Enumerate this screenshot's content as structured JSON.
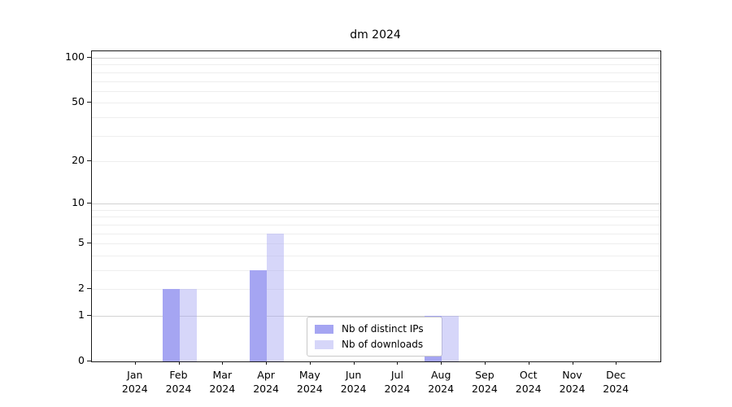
{
  "chart_data": {
    "type": "bar",
    "title": "dm 2024",
    "categories": [
      {
        "month": "Jan",
        "year": "2024"
      },
      {
        "month": "Feb",
        "year": "2024"
      },
      {
        "month": "Mar",
        "year": "2024"
      },
      {
        "month": "Apr",
        "year": "2024"
      },
      {
        "month": "May",
        "year": "2024"
      },
      {
        "month": "Jun",
        "year": "2024"
      },
      {
        "month": "Jul",
        "year": "2024"
      },
      {
        "month": "Aug",
        "year": "2024"
      },
      {
        "month": "Sep",
        "year": "2024"
      },
      {
        "month": "Oct",
        "year": "2024"
      },
      {
        "month": "Nov",
        "year": "2024"
      },
      {
        "month": "Dec",
        "year": "2024"
      }
    ],
    "series": [
      {
        "name": "Nb of distinct IPs",
        "color": "#a5a5f2",
        "values": [
          0,
          2,
          0,
          3,
          0,
          0,
          0,
          1,
          0,
          0,
          0,
          0
        ]
      },
      {
        "name": "Nb of downloads",
        "color": "rgba(165,165,242,0.45)",
        "values": [
          0,
          2,
          0,
          6,
          0,
          0,
          0,
          1,
          0,
          0,
          0,
          0
        ]
      }
    ],
    "y_axis": {
      "ticks": [
        0,
        1,
        2,
        5,
        10,
        20,
        50,
        100
      ],
      "scale": "log10(1+x)",
      "max": 111
    },
    "grid": true,
    "legend_position": "bottom-center-inside"
  }
}
